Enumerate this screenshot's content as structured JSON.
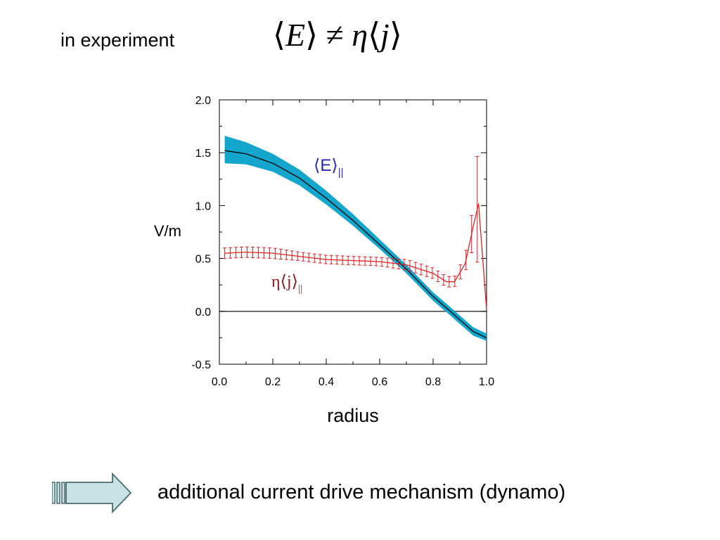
{
  "heading": "in experiment",
  "equation": {
    "lhs_open": "⟨",
    "lhs_var": "E",
    "lhs_close": "⟩",
    "relation": "≠",
    "coef": "η",
    "rhs_open": "⟨",
    "rhs_var": "j",
    "rhs_close": "⟩"
  },
  "conclusion": "additional current drive mechanism (dynamo)",
  "colors": {
    "e_band": "#14a6cc",
    "e_line": "#000000",
    "j_series": "#e02020",
    "e_label": "#2828b4",
    "j_label": "#8b1a1a",
    "arrow_fill": "#c7e3e6"
  },
  "chart_data": {
    "type": "line",
    "xlabel": "radius",
    "ylabel": "V/m",
    "xlim": [
      0.0,
      1.0
    ],
    "ylim": [
      -0.5,
      2.0
    ],
    "xticks": [
      "0.0",
      "0.2",
      "0.4",
      "0.6",
      "0.8",
      "1.0"
    ],
    "yticks": [
      "2.0",
      "1.5",
      "1.0",
      "0.5",
      "0.0",
      "-0.5"
    ],
    "zero_line": true,
    "series": [
      {
        "name": "⟨E⟩||",
        "label_main": "⟨E⟩",
        "label_sub": "||",
        "x": [
          0.02,
          0.1,
          0.2,
          0.3,
          0.4,
          0.5,
          0.6,
          0.7,
          0.8,
          0.86,
          0.9,
          0.95,
          1.0
        ],
        "y": [
          1.52,
          1.49,
          1.4,
          1.26,
          1.07,
          0.86,
          0.63,
          0.4,
          0.14,
          0.01,
          -0.08,
          -0.19,
          -0.25
        ],
        "band_lower": [
          1.4,
          1.39,
          1.32,
          1.19,
          1.01,
          0.81,
          0.59,
          0.36,
          0.1,
          -0.03,
          -0.12,
          -0.23,
          -0.28
        ],
        "band_upper": [
          1.66,
          1.6,
          1.49,
          1.34,
          1.14,
          0.92,
          0.68,
          0.44,
          0.18,
          0.05,
          -0.04,
          -0.15,
          -0.21
        ]
      },
      {
        "name": "η⟨j⟩||",
        "label_main": "η⟨j⟩",
        "label_sub": "||",
        "x": [
          0.02,
          0.1,
          0.2,
          0.3,
          0.4,
          0.5,
          0.6,
          0.7,
          0.8,
          0.85,
          0.88,
          0.92,
          0.95,
          0.97,
          1.0
        ],
        "y": [
          0.55,
          0.56,
          0.55,
          0.52,
          0.49,
          0.48,
          0.47,
          0.44,
          0.36,
          0.28,
          0.28,
          0.45,
          0.8,
          1.02,
          0.02
        ],
        "err": [
          0.05,
          0.05,
          0.05,
          0.04,
          0.04,
          0.04,
          0.04,
          0.05,
          0.05,
          0.05,
          0.05,
          0.08,
          0.2,
          0.6,
          0.3
        ]
      }
    ]
  }
}
